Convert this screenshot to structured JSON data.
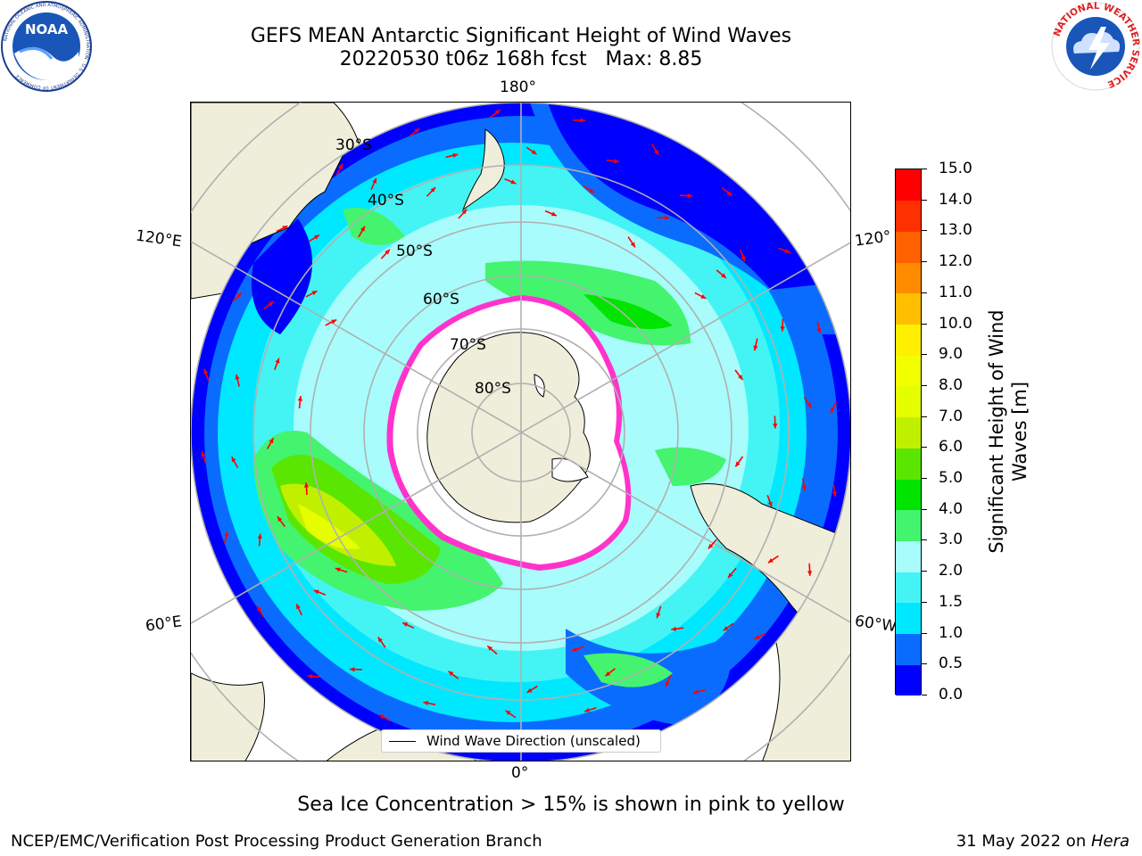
{
  "header": {
    "title_line1": "GEFS MEAN Antarctic Significant Height of Wind Waves",
    "title_line2": "20220530 t06z 168h fcst   Max: 8.85"
  },
  "logos": {
    "noaa": {
      "icon": "noaa-logo",
      "text": "NOAA",
      "ring_text": "NATIONAL OCEANIC AND ATMOSPHERIC ADMINISTRATION · U.S. DEPARTMENT OF COMMERCE"
    },
    "nws": {
      "icon": "nws-logo",
      "ring_text": "NATIONAL WEATHER SERVICE"
    }
  },
  "map": {
    "projection": "south-polar-stereographic",
    "lon_labels": {
      "top": "180°",
      "bottom": "0°",
      "left_upper": "120°E",
      "left_lower": "60°E",
      "right_upper": "120°",
      "right_lower": "60°W"
    },
    "lat_labels": [
      "30°S",
      "40°S",
      "50°S",
      "60°S",
      "70°S",
      "80°S"
    ],
    "colors": {
      "land": "#efeedb",
      "ice": "#ffffff",
      "ice_edge": "#ff33cc",
      "arrows": "#ff0000",
      "grid": "#b0b0b0"
    }
  },
  "colorbar": {
    "label": "Significant Height of Wind Waves [m]",
    "label_line1": "Significant Height of Wind",
    "label_line2": "Waves [m]",
    "ticks": [
      "0.0",
      "0.5",
      "1.0",
      "1.5",
      "2.0",
      "3.0",
      "4.0",
      "5.0",
      "6.0",
      "7.0",
      "8.0",
      "9.0",
      "10.0",
      "11.0",
      "12.0",
      "13.0",
      "14.0",
      "15.0"
    ],
    "colors": [
      "#0000ff",
      "#0a6cff",
      "#00e8ff",
      "#44f4f4",
      "#a8fcfc",
      "#44f46e",
      "#00e400",
      "#5ae600",
      "#c0f000",
      "#e6ff00",
      "#f2ff00",
      "#ffef00",
      "#ffbe00",
      "#ff8c00",
      "#ff6000",
      "#ff3000",
      "#ff0000"
    ]
  },
  "legend": {
    "label": "Wind Wave Direction (unscaled)"
  },
  "caption": "Sea Ice Concentration > 15% is shown in pink to yellow",
  "footer": {
    "left": "NCEP/EMC/Verification Post Processing Product Generation Branch",
    "date": "31 May 2022 on ",
    "host": "Hera"
  }
}
